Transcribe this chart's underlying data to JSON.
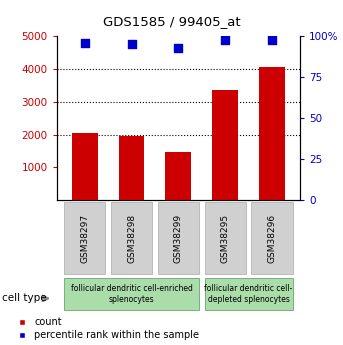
{
  "title": "GDS1585 / 99405_at",
  "samples": [
    "GSM38297",
    "GSM38298",
    "GSM38299",
    "GSM38295",
    "GSM38296"
  ],
  "counts": [
    2050,
    1950,
    1470,
    3350,
    4050
  ],
  "percentiles": [
    96,
    95,
    93,
    98,
    98
  ],
  "ylim_left": [
    0,
    5000
  ],
  "ylim_right": [
    0,
    100
  ],
  "yticks_left": [
    1000,
    2000,
    3000,
    4000,
    5000
  ],
  "yticks_right": [
    0,
    25,
    50,
    75,
    100
  ],
  "bar_color": "#cc0000",
  "dot_color": "#0000cc",
  "dot_size": 40,
  "bar_width": 0.55,
  "group1_label": "follicular dendritic cell-enriched\nsplenocytes",
  "group2_label": "follicular dendritic cell-\ndepleted splenocytes",
  "group1_samples": [
    0,
    1,
    2
  ],
  "group2_samples": [
    3,
    4
  ],
  "cell_type_label": "cell type",
  "legend_count_label": "count",
  "legend_pct_label": "percentile rank within the sample",
  "bar_edgecolor": "#cc0000",
  "bg_group": "#aaddaa",
  "grid_dotted_ticks": [
    2000,
    3000,
    4000
  ]
}
